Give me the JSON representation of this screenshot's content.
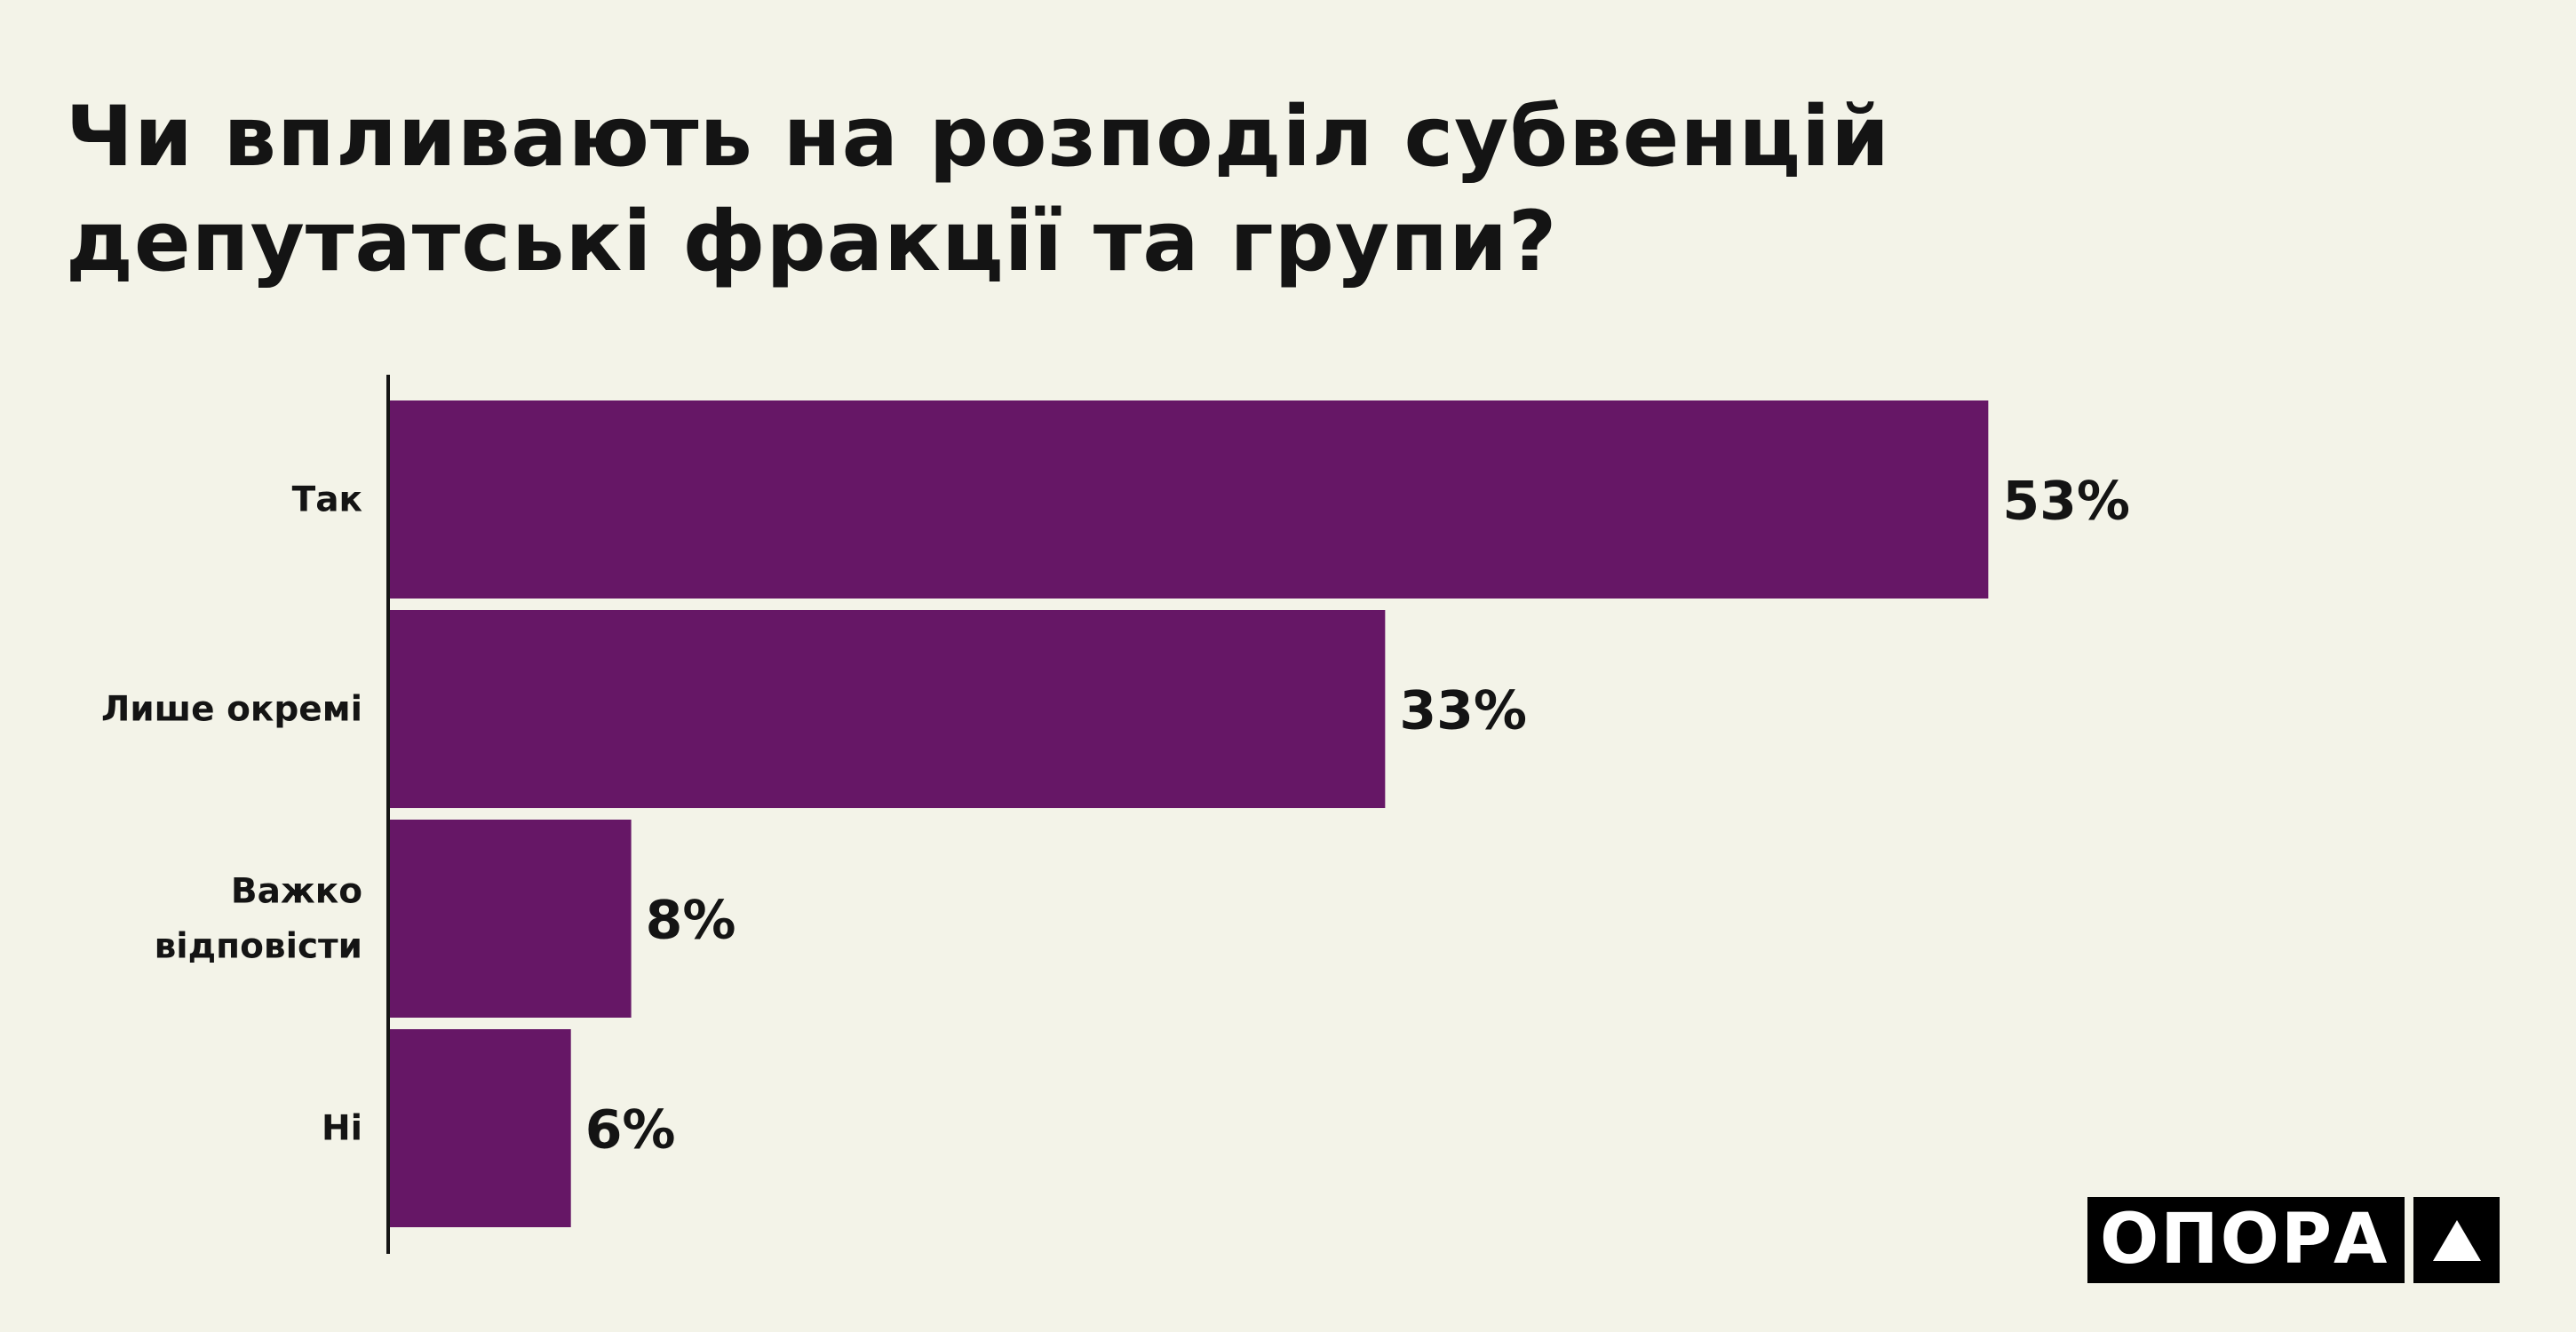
{
  "title": "Чи впливають на розподіл субвенцій депутатські фракції та групи?",
  "chart_data": {
    "type": "bar",
    "orientation": "horizontal",
    "categories": [
      [
        "Так"
      ],
      [
        "Лише окремі"
      ],
      [
        "Важко",
        "відповісти"
      ],
      [
        "Ні"
      ]
    ],
    "values": [
      53,
      33,
      8,
      6
    ],
    "value_labels": [
      "53%",
      "33%",
      "8%",
      "6%"
    ],
    "unit": "%",
    "bar_color": "#661766",
    "xlim": [
      0,
      100
    ],
    "grid": false,
    "legend": "none"
  },
  "logo": {
    "text": "ОПОРА"
  }
}
